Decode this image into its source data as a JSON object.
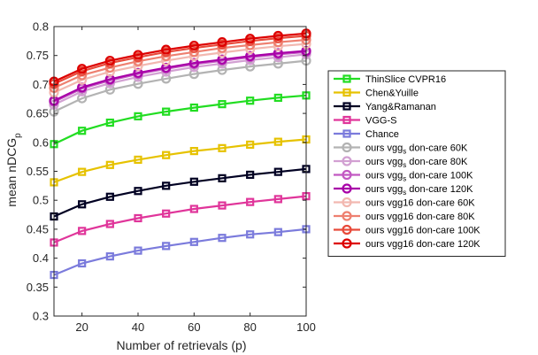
{
  "chart_data": {
    "type": "line",
    "xlabel": "Number of retrievals (p)",
    "ylabel_main": "mean nDCG",
    "ylabel_sub": "p",
    "xlim": [
      10,
      100
    ],
    "ylim": [
      0.3,
      0.8
    ],
    "x": [
      10,
      20,
      30,
      40,
      50,
      60,
      70,
      80,
      90,
      100
    ],
    "x_ticks": [
      "20",
      "40",
      "60",
      "80",
      "100"
    ],
    "x_tick_values": [
      20,
      40,
      60,
      80,
      100
    ],
    "y_ticks": [
      "0.3",
      "0.35",
      "0.4",
      "0.45",
      "0.5",
      "0.55",
      "0.6",
      "0.65",
      "0.7",
      "0.75",
      "0.8"
    ],
    "y_tick_values": [
      0.3,
      0.35,
      0.4,
      0.45,
      0.5,
      0.55,
      0.6,
      0.65,
      0.7,
      0.75,
      0.8
    ],
    "grid": false,
    "legend_position": "outside-right",
    "series": [
      {
        "name": "ThinSlice CVPR16",
        "color": "#22dd22",
        "marker": "square",
        "values": [
          0.597,
          0.62,
          0.634,
          0.645,
          0.653,
          0.66,
          0.666,
          0.672,
          0.677,
          0.681
        ]
      },
      {
        "name": "Chen&Yuille",
        "color": "#e6c200",
        "marker": "square",
        "values": [
          0.531,
          0.549,
          0.561,
          0.57,
          0.578,
          0.585,
          0.59,
          0.596,
          0.601,
          0.605
        ]
      },
      {
        "name": "Yang&Ramanan",
        "color": "#000022",
        "marker": "square",
        "values": [
          0.472,
          0.493,
          0.506,
          0.516,
          0.525,
          0.532,
          0.538,
          0.544,
          0.549,
          0.554
        ]
      },
      {
        "name": "VGG-S",
        "color": "#e0359a",
        "marker": "square",
        "values": [
          0.427,
          0.447,
          0.459,
          0.469,
          0.477,
          0.485,
          0.491,
          0.497,
          0.502,
          0.507
        ]
      },
      {
        "name": "Chance",
        "color": "#7b7bdc",
        "marker": "square",
        "values": [
          0.371,
          0.391,
          0.403,
          0.413,
          0.421,
          0.428,
          0.435,
          0.441,
          0.445,
          0.45
        ]
      },
      {
        "name": "ours vgg",
        "name_sub": "s",
        "name_rest": " don-care 60K",
        "color": "#b3b3b3",
        "marker": "circle",
        "values": [
          0.653,
          0.676,
          0.691,
          0.701,
          0.71,
          0.718,
          0.725,
          0.731,
          0.736,
          0.741
        ]
      },
      {
        "name": "ours vgg",
        "name_sub": "s",
        "name_rest": " don-care 80K",
        "color": "#d2a0d2",
        "marker": "circle",
        "values": [
          0.665,
          0.688,
          0.702,
          0.713,
          0.722,
          0.73,
          0.736,
          0.742,
          0.747,
          0.752
        ]
      },
      {
        "name": "ours vgg",
        "name_sub": "s",
        "name_rest": " don-care 100K",
        "color": "#c258c2",
        "marker": "circle",
        "values": [
          0.67,
          0.693,
          0.707,
          0.718,
          0.727,
          0.735,
          0.741,
          0.747,
          0.752,
          0.756
        ]
      },
      {
        "name": "ours vgg",
        "name_sub": "s",
        "name_rest": " don-care 120K",
        "color": "#a800a8",
        "marker": "circle",
        "values": [
          0.672,
          0.695,
          0.709,
          0.72,
          0.729,
          0.737,
          0.743,
          0.749,
          0.754,
          0.758
        ]
      },
      {
        "name": "ours vgg16 don-care 60K",
        "color": "#f2b8b0",
        "marker": "circle",
        "values": [
          0.686,
          0.708,
          0.722,
          0.732,
          0.741,
          0.749,
          0.755,
          0.761,
          0.766,
          0.77
        ]
      },
      {
        "name": "ours vgg16 don-care 80K",
        "color": "#ee8070",
        "marker": "circle",
        "values": [
          0.694,
          0.716,
          0.729,
          0.74,
          0.749,
          0.756,
          0.763,
          0.768,
          0.773,
          0.777
        ]
      },
      {
        "name": "ours vgg16 don-care 100K",
        "color": "#e84a3a",
        "marker": "circle",
        "values": [
          0.701,
          0.723,
          0.737,
          0.747,
          0.756,
          0.763,
          0.769,
          0.775,
          0.78,
          0.784
        ]
      },
      {
        "name": "ours vgg16 don-care 120K",
        "color": "#dd0000",
        "marker": "circle",
        "values": [
          0.705,
          0.727,
          0.741,
          0.751,
          0.76,
          0.767,
          0.773,
          0.779,
          0.784,
          0.788
        ]
      }
    ]
  }
}
